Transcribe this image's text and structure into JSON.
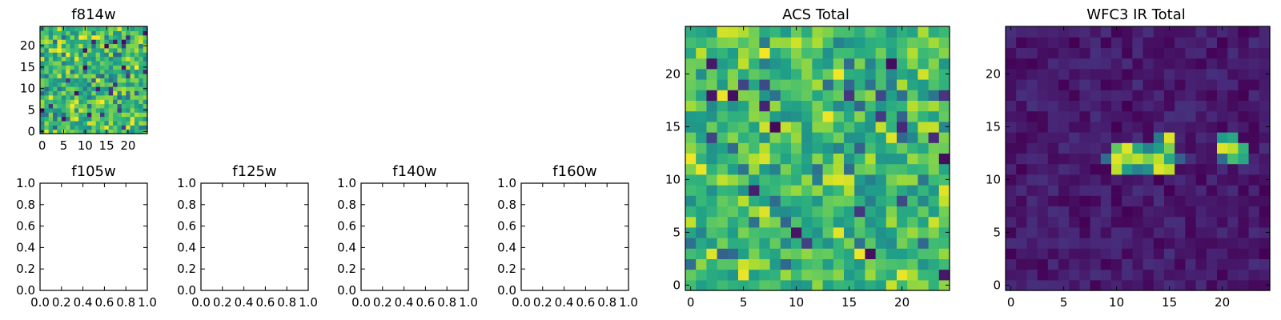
{
  "chart_data": [
    {
      "name": "f814w",
      "type": "heatmap",
      "title": "f814w",
      "size": 25,
      "xlim": [
        -0.5,
        24.5
      ],
      "ylim": [
        -0.5,
        24.5
      ],
      "xticks": [
        0,
        5,
        10,
        15,
        20
      ],
      "yticks": [
        0,
        5,
        10,
        15,
        20
      ],
      "colormap": "viridis",
      "field": "noise",
      "seed": 814,
      "hot_pixels": []
    },
    {
      "name": "f105w",
      "type": "empty",
      "title": "f105w",
      "xlim": [
        0,
        1
      ],
      "ylim": [
        0,
        1
      ],
      "xticks": [
        "0.0",
        "0.2",
        "0.4",
        "0.6",
        "0.8",
        "1.0"
      ],
      "yticks": [
        "0.0",
        "0.2",
        "0.4",
        "0.6",
        "0.8",
        "1.0"
      ]
    },
    {
      "name": "f125w",
      "type": "empty",
      "title": "f125w",
      "xlim": [
        0,
        1
      ],
      "ylim": [
        0,
        1
      ],
      "xticks": [
        "0.0",
        "0.2",
        "0.4",
        "0.6",
        "0.8",
        "1.0"
      ],
      "yticks": [
        "0.0",
        "0.2",
        "0.4",
        "0.6",
        "0.8",
        "1.0"
      ]
    },
    {
      "name": "f140w",
      "type": "empty",
      "title": "f140w",
      "xlim": [
        0,
        1
      ],
      "ylim": [
        0,
        1
      ],
      "xticks": [
        "0.0",
        "0.2",
        "0.4",
        "0.6",
        "0.8",
        "1.0"
      ],
      "yticks": [
        "0.0",
        "0.2",
        "0.4",
        "0.6",
        "0.8",
        "1.0"
      ]
    },
    {
      "name": "f160w",
      "type": "empty",
      "title": "f160w",
      "xlim": [
        0,
        1
      ],
      "ylim": [
        0,
        1
      ],
      "xticks": [
        "0.0",
        "0.2",
        "0.4",
        "0.6",
        "0.8",
        "1.0"
      ],
      "yticks": [
        "0.0",
        "0.2",
        "0.4",
        "0.6",
        "0.8",
        "1.0"
      ]
    },
    {
      "name": "acs-total",
      "type": "heatmap",
      "title": "ACS Total",
      "size": 25,
      "xlim": [
        -0.5,
        24.5
      ],
      "ylim": [
        -0.5,
        24.5
      ],
      "xticks": [
        0,
        5,
        10,
        15,
        20
      ],
      "yticks": [
        0,
        5,
        10,
        15,
        20
      ],
      "colormap": "viridis",
      "field": "noise",
      "seed": 1337,
      "hot_pixels": []
    },
    {
      "name": "wfc3-ir-total",
      "type": "heatmap",
      "title": "WFC3 IR Total",
      "size": 25,
      "xlim": [
        -0.5,
        24.5
      ],
      "ylim": [
        -0.5,
        24.5
      ],
      "xticks": [
        0,
        5,
        10,
        15,
        20
      ],
      "yticks": [
        0,
        5,
        10,
        15,
        20
      ],
      "colormap": "viridis",
      "field": "background",
      "seed": 2024,
      "hot_pixels": [
        {
          "x": 10,
          "y": 12,
          "v": 0.95
        },
        {
          "x": 11,
          "y": 12,
          "v": 0.85
        },
        {
          "x": 12,
          "y": 12,
          "v": 0.9
        },
        {
          "x": 13,
          "y": 12,
          "v": 0.8
        },
        {
          "x": 14,
          "y": 12,
          "v": 0.9
        },
        {
          "x": 15,
          "y": 12,
          "v": 0.6
        },
        {
          "x": 10,
          "y": 13,
          "v": 0.75
        },
        {
          "x": 11,
          "y": 13,
          "v": 0.95
        },
        {
          "x": 12,
          "y": 13,
          "v": 0.6
        },
        {
          "x": 14,
          "y": 13,
          "v": 0.55
        },
        {
          "x": 15,
          "y": 13,
          "v": 0.8
        },
        {
          "x": 15,
          "y": 14,
          "v": 0.95
        },
        {
          "x": 14,
          "y": 14,
          "v": 0.4
        },
        {
          "x": 10,
          "y": 11,
          "v": 0.9
        },
        {
          "x": 11,
          "y": 11,
          "v": 0.55
        },
        {
          "x": 12,
          "y": 11,
          "v": 0.45
        },
        {
          "x": 14,
          "y": 11,
          "v": 0.95
        },
        {
          "x": 15,
          "y": 11,
          "v": 0.9
        },
        {
          "x": 9,
          "y": 12,
          "v": 0.35
        },
        {
          "x": 13,
          "y": 11,
          "v": 0.5
        },
        {
          "x": 13,
          "y": 13,
          "v": 0.45
        },
        {
          "x": 16,
          "y": 12,
          "v": 0.3
        },
        {
          "x": 20,
          "y": 13,
          "v": 0.95
        },
        {
          "x": 21,
          "y": 13,
          "v": 0.9
        },
        {
          "x": 22,
          "y": 13,
          "v": 0.65
        },
        {
          "x": 20,
          "y": 14,
          "v": 0.55
        },
        {
          "x": 21,
          "y": 14,
          "v": 0.6
        },
        {
          "x": 21,
          "y": 12,
          "v": 0.7
        },
        {
          "x": 22,
          "y": 12,
          "v": 0.6
        },
        {
          "x": 20,
          "y": 12,
          "v": 0.35
        }
      ]
    }
  ]
}
